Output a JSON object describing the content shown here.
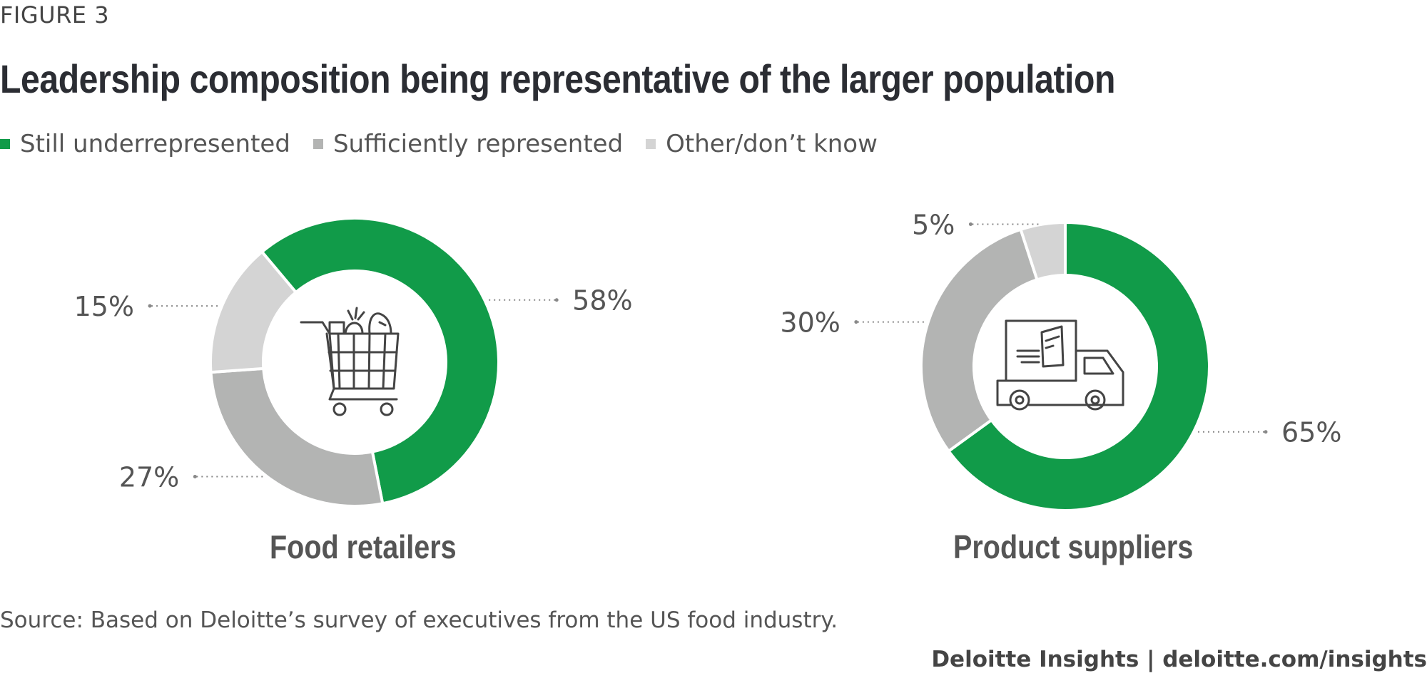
{
  "figure_label": "FIGURE 3",
  "title": "Leadership composition being representative of the larger population",
  "source": "Source: Based on Deloitte’s survey of executives from the US food industry.",
  "footer": "Deloitte Insights | deloitte.com/insights",
  "colors": {
    "still_underrepresented": "#119b49",
    "sufficiently_represented": "#b3b4b3",
    "other": "#d4d4d4",
    "label_text": "#555555",
    "leader": "#888888",
    "icon": "#444444"
  },
  "chart_data": {
    "type": "pie",
    "variant": "donut",
    "title": "Leadership composition being representative of the larger population",
    "legend": [
      {
        "name": "Still underrepresented",
        "color": "#119b49"
      },
      {
        "name": "Sufficiently represented",
        "color": "#b3b4b3"
      },
      {
        "name": "Other/don’t know",
        "color": "#d4d4d4"
      }
    ],
    "legend_position": "top-left",
    "charts": [
      {
        "label": "Food retailers",
        "icon": "shopping-cart-icon",
        "slices": [
          {
            "name": "Still underrepresented",
            "value": 58,
            "label": "58%"
          },
          {
            "name": "Sufficiently represented",
            "value": 27,
            "label": "27%"
          },
          {
            "name": "Other/don’t know",
            "value": 15,
            "label": "15%"
          }
        ]
      },
      {
        "label": "Product suppliers",
        "icon": "delivery-truck-icon",
        "slices": [
          {
            "name": "Still underrepresented",
            "value": 65,
            "label": "65%"
          },
          {
            "name": "Sufficiently represented",
            "value": 30,
            "label": "30%"
          },
          {
            "name": "Other/don’t know",
            "value": 5,
            "label": "5%"
          }
        ]
      }
    ]
  }
}
